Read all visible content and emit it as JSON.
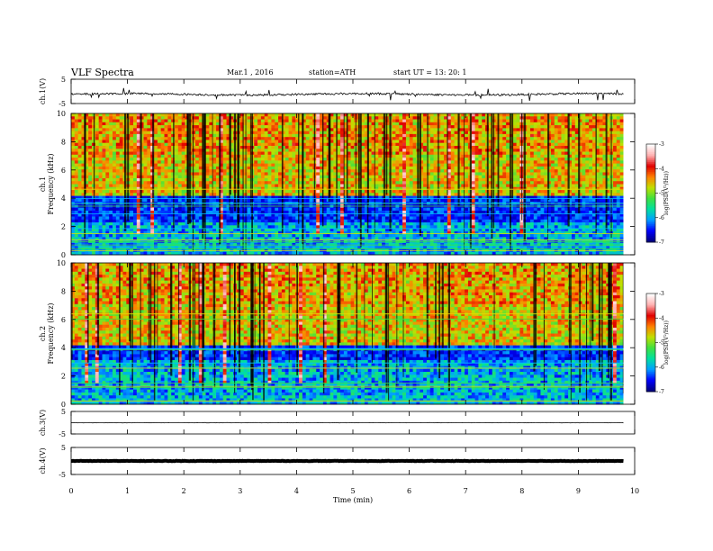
{
  "header": {
    "title": "VLF  Spectra",
    "date": "Mar.1  , 2016",
    "station": "station=ATH",
    "start_ut": "start  UT  =    13: 20: 1"
  },
  "chart_data": {
    "type": "heatmap",
    "xlabel": "Time  (min)",
    "xlim": [
      0,
      10
    ],
    "x_ticks": [
      "0",
      "1",
      "2",
      "3",
      "4",
      "5",
      "6",
      "7",
      "8",
      "9",
      "10"
    ],
    "waveform_panels": [
      {
        "id": "ch1",
        "ylabel": "ch.1(V)",
        "ylim": [
          -5,
          5
        ],
        "y_ticks": [
          "5",
          "-5"
        ],
        "baseline": -1.2,
        "trace_color": "#000000"
      },
      {
        "id": "ch3",
        "ylabel": "ch.3(V)",
        "ylim": [
          -5,
          5
        ],
        "y_ticks": [
          "5",
          "-5"
        ],
        "baseline": 0,
        "trace_color": "#000000"
      },
      {
        "id": "ch4",
        "ylabel": "ch.4(V)",
        "ylim": [
          -5,
          5
        ],
        "y_ticks": [
          "5",
          "-5"
        ],
        "baseline": 0,
        "trace_color": "#000000"
      }
    ],
    "spectrogram_panels": [
      {
        "id": "ch1",
        "ylabel_channel": "ch.1",
        "ylabel": "Frequency  (kHz)",
        "ylim": [
          0,
          10
        ],
        "y_ticks": [
          "0",
          "2",
          "4",
          "6",
          "8",
          "10"
        ],
        "data_end_min": 9.8,
        "background_quiet_band_khz": [
          2.2,
          4.2
        ]
      },
      {
        "id": "ch2",
        "ylabel_channel": "ch.2",
        "ylabel": "Frequency  (kHz)",
        "ylim": [
          0,
          10
        ],
        "y_ticks": [
          "0",
          "2",
          "4",
          "6",
          "8",
          "10"
        ],
        "data_end_min": 9.8,
        "background_quiet_band_khz": [
          3.2,
          4.2
        ]
      }
    ],
    "colorbar": {
      "label": "log(PSD(V²/Hz))",
      "range": [
        -7,
        -3
      ],
      "ticks": [
        "-3",
        "-4",
        "-5",
        "-6",
        "-7"
      ],
      "colors": [
        "#000080",
        "#0000ff",
        "#00a0ff",
        "#00e0a0",
        "#40e040",
        "#c0e000",
        "#ff8000",
        "#e00000",
        "#ffb0b0",
        "#ffffff"
      ]
    }
  }
}
